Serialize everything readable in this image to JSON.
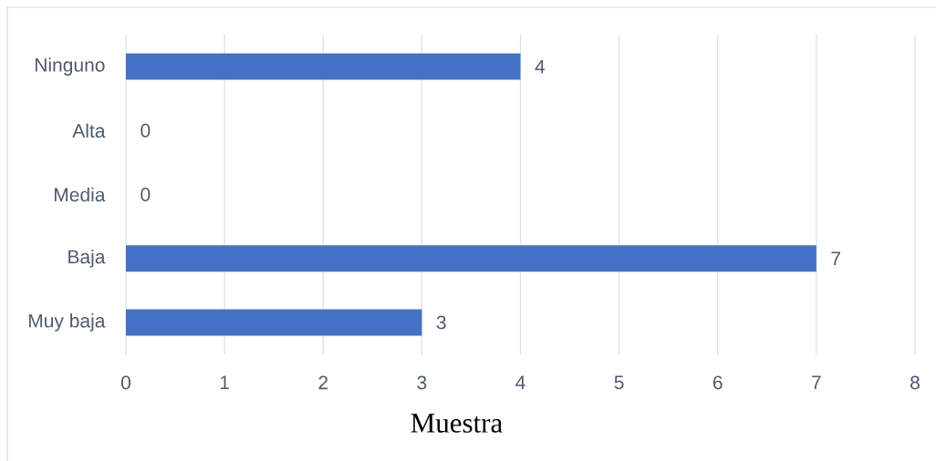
{
  "chart_data": {
    "type": "bar",
    "orientation": "horizontal",
    "xlabel": "Muestra",
    "categories": [
      "Ninguno",
      "Alta",
      "Media",
      "Baja",
      "Muy baja"
    ],
    "values": [
      4,
      0,
      0,
      7,
      3
    ],
    "color": "#4472c4",
    "xlim": [
      0,
      8
    ],
    "xticks": [
      0,
      1,
      2,
      3,
      4,
      5,
      6,
      7,
      8
    ],
    "grid": "x",
    "data_labels": true
  }
}
